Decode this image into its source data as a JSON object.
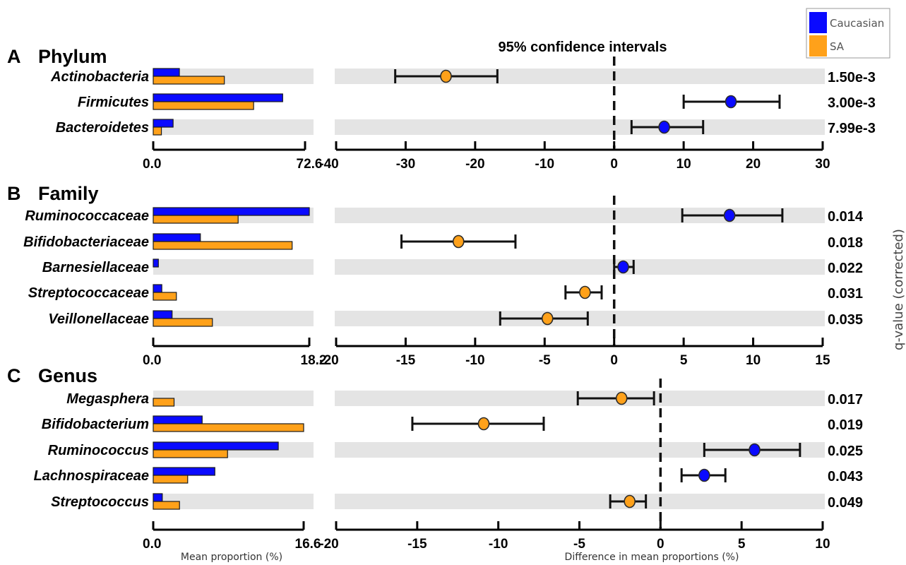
{
  "title": "95% confidence intervals",
  "legend": [
    {
      "name": "Caucasian",
      "color": "#0a0aff"
    },
    {
      "name": "SA",
      "color": "#ffa11a"
    }
  ],
  "left_xlabel": "Mean proportion (%)",
  "right_xlabel": "Difference in mean proportions (%)",
  "right_ylabel": "q-value   (corrected)",
  "colors": {
    "caucasian": "#0a0aff",
    "sa": "#ffa11a",
    "band": "#e4e4e4",
    "axis": "#000000"
  },
  "chart_data": [
    {
      "type": "bar",
      "panel": "A",
      "title": "Phylum",
      "categories": [
        "Actinobacteria",
        "Firmicutes",
        "Bacteroidetes"
      ],
      "series": [
        {
          "name": "Caucasian",
          "values": [
            12.5,
            61.9,
            9.5
          ]
        },
        {
          "name": "SA",
          "values": [
            34.0,
            48.0,
            3.9
          ]
        }
      ],
      "xlim": [
        0,
        72.6
      ],
      "xticklabels": [
        "0.0",
        "72.6"
      ],
      "ci": {
        "type": "scatter",
        "estimates": [
          -24.2,
          16.8,
          7.2
        ],
        "lower": [
          -31.5,
          10.0,
          2.5
        ],
        "upper": [
          -16.8,
          23.8,
          12.8
        ],
        "higher_group": [
          "SA",
          "Caucasian",
          "Caucasian"
        ],
        "xlim": [
          -40,
          30
        ],
        "xticks": [
          "-40",
          "-30",
          "-20",
          "-10",
          "0",
          "10",
          "20",
          "30"
        ]
      },
      "qvalues": [
        "1.50e-3",
        "3.00e-3",
        "7.99e-3"
      ]
    },
    {
      "type": "bar",
      "panel": "B",
      "title": "Family",
      "categories": [
        "Ruminococcaceae",
        "Bifidobacteriaceae",
        "Barnesiellaceae",
        "Streptococcaceae",
        "Veillonellaceae"
      ],
      "series": [
        {
          "name": "Caucasian",
          "values": [
            18.2,
            5.5,
            0.6,
            1.0,
            2.2
          ]
        },
        {
          "name": "SA",
          "values": [
            9.9,
            16.2,
            0.0,
            2.7,
            6.9
          ]
        }
      ],
      "xlim": [
        0,
        18.2
      ],
      "xticklabels": [
        "0.0",
        "18.2"
      ],
      "ci": {
        "type": "scatter",
        "estimates": [
          8.3,
          -11.2,
          0.65,
          -2.1,
          -4.8
        ],
        "lower": [
          4.9,
          -15.3,
          0.0,
          -3.5,
          -8.2
        ],
        "upper": [
          12.1,
          -7.1,
          1.4,
          -0.9,
          -1.9
        ],
        "higher_group": [
          "Caucasian",
          "SA",
          "Caucasian",
          "SA",
          "SA"
        ],
        "xlim": [
          -20,
          15
        ],
        "xticks": [
          "-20",
          "-15",
          "-10",
          "-5",
          "0",
          "5",
          "10",
          "15"
        ]
      },
      "qvalues": [
        "0.014",
        "0.018",
        "0.022",
        "0.031",
        "0.035"
      ]
    },
    {
      "type": "bar",
      "panel": "C",
      "title": "Genus",
      "categories": [
        "Megasphera",
        "Bifidobacterium",
        "Ruminococcus",
        "Lachnospiraceae",
        "Streptococcus"
      ],
      "series": [
        {
          "name": "Caucasian",
          "values": [
            0.0,
            5.4,
            13.8,
            6.8,
            1.0
          ]
        },
        {
          "name": "SA",
          "values": [
            2.3,
            16.6,
            8.2,
            3.8,
            2.9
          ]
        }
      ],
      "xlim": [
        0,
        16.6
      ],
      "xticklabels": [
        "0.0",
        "16.6"
      ],
      "ci": {
        "type": "scatter",
        "estimates": [
          -2.4,
          -10.9,
          5.8,
          2.7,
          -1.9
        ],
        "lower": [
          -5.1,
          -15.3,
          2.7,
          1.3,
          -3.1
        ],
        "upper": [
          -0.4,
          -7.2,
          8.6,
          4.0,
          -0.9
        ],
        "higher_group": [
          "SA",
          "SA",
          "Caucasian",
          "Caucasian",
          "SA"
        ],
        "xlim": [
          -20,
          10
        ],
        "xticks": [
          "-20",
          "-15",
          "-10",
          "-5",
          "0",
          "5",
          "10"
        ]
      },
      "qvalues": [
        "0.017",
        "0.019",
        "0.025",
        "0.043",
        "0.049"
      ]
    }
  ]
}
